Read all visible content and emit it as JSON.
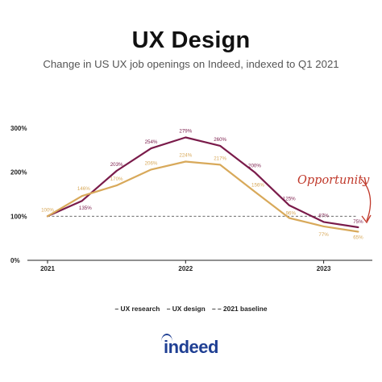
{
  "header": {
    "title": "UX Design",
    "subtitle": "Change in US UX job openings on Indeed, indexed to Q1 2021"
  },
  "annotation": {
    "text": "Opportunity",
    "color": "#c0392b"
  },
  "legend": {
    "items": [
      "UX research",
      "UX design",
      "2021 baseline"
    ],
    "dash_marks": [
      "–",
      "–",
      "– –"
    ]
  },
  "brand": {
    "logo_text": "indeed",
    "color": "#1f3f93"
  },
  "colors": {
    "ux_research": "#7a1b4a",
    "ux_design": "#d8a95a",
    "baseline": "#555555"
  },
  "chart_data": {
    "type": "line",
    "xlabel": "",
    "ylabel": "",
    "xlim": [
      2021.0,
      2023.3
    ],
    "ylim": [
      0,
      300
    ],
    "x_ticks": [
      2021,
      2022,
      2023
    ],
    "x_tick_labels": [
      "2021",
      "2022",
      "2023"
    ],
    "y_ticks": [
      0,
      100,
      200,
      300
    ],
    "y_tick_labels": [
      "0%",
      "100%",
      "200%",
      "300%"
    ],
    "grid": false,
    "legend_position": "bottom",
    "baseline": {
      "name": "2021 baseline",
      "y": 100
    },
    "series": [
      {
        "name": "UX research",
        "color": "#7a1b4a",
        "x": [
          2021.0,
          2021.25,
          2021.5,
          2021.75,
          2022.0,
          2022.25,
          2022.5,
          2022.75,
          2023.0,
          2023.25
        ],
        "values": [
          100,
          135,
          203,
          254,
          279,
          260,
          200,
          125,
          87,
          75
        ],
        "labels": [
          "",
          "135%",
          "203%",
          "254%",
          "279%",
          "260%",
          "200%",
          "125%",
          "87%",
          "75%"
        ]
      },
      {
        "name": "UX design",
        "color": "#d8a95a",
        "x": [
          2021.0,
          2021.25,
          2021.5,
          2021.75,
          2022.0,
          2022.25,
          2022.5,
          2022.75,
          2023.0,
          2023.25
        ],
        "values": [
          100,
          146,
          170,
          206,
          224,
          217,
          156,
          96,
          77,
          65
        ],
        "labels": [
          "100%",
          "146%",
          "170%",
          "206%",
          "224%",
          "217%",
          "156%",
          "96%",
          "77%",
          "65%"
        ]
      }
    ]
  }
}
